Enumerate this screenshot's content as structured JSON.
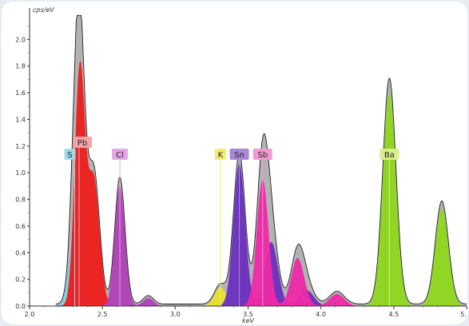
{
  "chart_data": {
    "type": "area",
    "ylabel": "cps/eV",
    "xlabel": "keV",
    "xlim": [
      2.0,
      5.0
    ],
    "ylim": [
      0.0,
      2.2
    ],
    "x_ticks": [
      "2.0",
      "2.5",
      "3.0",
      "3.5",
      "4.0",
      "4.5",
      "5."
    ],
    "y_ticks": [
      "0.0",
      "0.2",
      "0.4",
      "0.6",
      "0.8",
      "1.0",
      "1.2",
      "1.4",
      "1.6",
      "1.8",
      "2.0"
    ],
    "grid": false,
    "element_labels": [
      {
        "label": "Pb",
        "x": 2.34,
        "color": "#f4a3a8"
      },
      {
        "label": "S",
        "x": 2.31,
        "color": "#9fd8e6"
      },
      {
        "label": "Cl",
        "x": 2.62,
        "color": "#e7a5e6"
      },
      {
        "label": "K",
        "x": 3.31,
        "color": "#f1ec72"
      },
      {
        "label": "Sn",
        "x": 3.44,
        "color": "#a887d6"
      },
      {
        "label": "Sb",
        "x": 3.6,
        "color": "#f29ad0"
      },
      {
        "label": "Ba",
        "x": 4.47,
        "color": "#d8f08a"
      }
    ],
    "series": [
      {
        "element": "S",
        "color": "#76d6e6",
        "peaks": [
          {
            "x": 2.31,
            "y": 0.62,
            "w": 0.035
          }
        ]
      },
      {
        "element": "Pb",
        "color": "#ee1c1c",
        "peaks": [
          {
            "x": 2.345,
            "y": 1.78,
            "w": 0.035
          },
          {
            "x": 2.44,
            "y": 0.95,
            "w": 0.04
          }
        ]
      },
      {
        "element": "Cl",
        "color": "#b040b8",
        "peaks": [
          {
            "x": 2.62,
            "y": 0.9,
            "w": 0.035
          },
          {
            "x": 2.815,
            "y": 0.06,
            "w": 0.035
          }
        ]
      },
      {
        "element": "K",
        "color": "#e8e32a",
        "peaks": [
          {
            "x": 3.31,
            "y": 0.14,
            "w": 0.04
          },
          {
            "x": 3.59,
            "y": 0.03,
            "w": 0.04
          }
        ]
      },
      {
        "element": "Sn",
        "color": "#6a2ec0",
        "peaks": [
          {
            "x": 3.44,
            "y": 1.07,
            "w": 0.04
          },
          {
            "x": 3.66,
            "y": 0.48,
            "w": 0.045
          },
          {
            "x": 3.9,
            "y": 0.12,
            "w": 0.05
          }
        ]
      },
      {
        "element": "Sb",
        "color": "#ee2aa8",
        "peaks": [
          {
            "x": 3.6,
            "y": 0.95,
            "w": 0.04
          },
          {
            "x": 3.84,
            "y": 0.36,
            "w": 0.045
          },
          {
            "x": 4.11,
            "y": 0.09,
            "w": 0.05
          }
        ]
      },
      {
        "element": "Ba",
        "color": "#8fd81c",
        "peaks": [
          {
            "x": 4.47,
            "y": 1.6,
            "w": 0.045
          },
          {
            "x": 4.83,
            "y": 0.73,
            "w": 0.045
          }
        ]
      }
    ],
    "spectrum_color": "#b3b3b3"
  }
}
